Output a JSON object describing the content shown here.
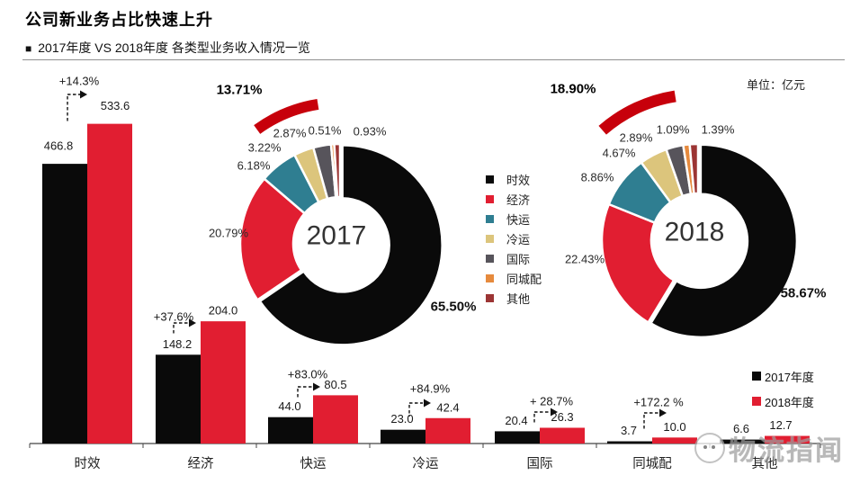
{
  "header": {
    "title": "公司新业务占比快速上升",
    "subtitle_bullet": "■",
    "subtitle": "2017年度 VS 2018年度 各类型业务收入情况一览"
  },
  "unit_label": "单位：亿元",
  "watermark": {
    "text": "物流指闻"
  },
  "colors": {
    "series": {
      "时效": "#0A0A0A",
      "经济": "#E11E31",
      "快运": "#2F7E91",
      "冷运": "#DCC57C",
      "国际": "#57545B",
      "同城配": "#E68A3D",
      "其他": "#9C3534"
    },
    "highlight_arc": "#C7000B",
    "axis": "#444444",
    "label_text": "#1A1A1A"
  },
  "donut_legend": [
    "时效",
    "经济",
    "快运",
    "冷运",
    "国际",
    "同城配",
    "其他"
  ],
  "bar_legend": [
    {
      "label": "2017年度",
      "color": "#0A0A0A"
    },
    {
      "label": "2018年度",
      "color": "#E11E31"
    }
  ],
  "chart_data": [
    {
      "type": "bar",
      "title": "2017年度 VS 2018年度 各类型业务收入情况一览",
      "unit": "亿元",
      "categories": [
        "时效",
        "经济",
        "快运",
        "冷运",
        "国际",
        "同城配",
        "其他"
      ],
      "series": [
        {
          "name": "2017年度",
          "color": "#0A0A0A",
          "values": [
            466.8,
            148.2,
            44.0,
            23.0,
            20.4,
            3.7,
            6.6
          ],
          "value_labels": [
            "466.8",
            "148.2",
            "44.0",
            "23.0",
            "20.4",
            "3.7",
            "6.6"
          ]
        },
        {
          "name": "2018年度",
          "color": "#E11E31",
          "values": [
            533.6,
            204.0,
            80.5,
            42.4,
            26.3,
            10.0,
            12.7
          ],
          "value_labels": [
            "533.6",
            "204.0",
            "80.5",
            "42.4",
            "26.3",
            "10.0",
            "12.7"
          ]
        }
      ],
      "growth_labels": [
        "+14.3%",
        "+37.6%",
        "+83.0%",
        "+84.9%",
        "+ 28.7%",
        "+172.2 %",
        null
      ],
      "ylim": [
        0,
        560
      ],
      "grid": false,
      "legend_position": "bottom-right"
    },
    {
      "type": "pie",
      "center_label": "2017",
      "highlight_label": "13.71%",
      "slices": [
        {
          "name": "时效",
          "value": 65.5,
          "label": "65.50%"
        },
        {
          "name": "经济",
          "value": 20.79,
          "label": "20.79%"
        },
        {
          "name": "快运",
          "value": 6.18,
          "label": "6.18%"
        },
        {
          "name": "冷运",
          "value": 3.22,
          "label": "3.22%"
        },
        {
          "name": "国际",
          "value": 2.87,
          "label": "2.87%"
        },
        {
          "name": "同城配",
          "value": 0.51,
          "label": "0.51%"
        },
        {
          "name": "其他",
          "value": 0.93,
          "label": "0.93%"
        }
      ]
    },
    {
      "type": "pie",
      "center_label": "2018",
      "highlight_label": "18.90%",
      "slices": [
        {
          "name": "时效",
          "value": 58.67,
          "label": "58.67%"
        },
        {
          "name": "经济",
          "value": 22.43,
          "label": "22.43%"
        },
        {
          "name": "快运",
          "value": 8.86,
          "label": "8.86%"
        },
        {
          "name": "冷运",
          "value": 4.67,
          "label": "4.67%"
        },
        {
          "name": "国际",
          "value": 2.89,
          "label": "2.89%"
        },
        {
          "name": "同城配",
          "value": 1.09,
          "label": "1.09%"
        },
        {
          "name": "其他",
          "value": 1.39,
          "label": "1.39%"
        }
      ]
    }
  ]
}
